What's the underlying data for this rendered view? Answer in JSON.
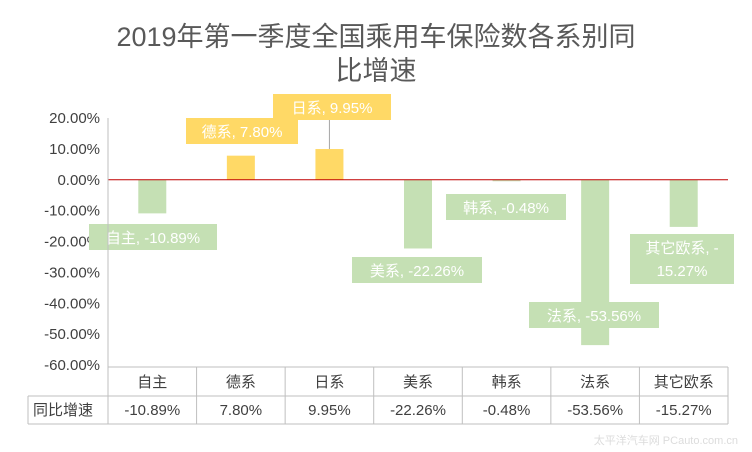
{
  "chart_data": {
    "type": "bar",
    "title": "2019年第一季度全国乘用车保险数各系别同比增速",
    "title_lines": [
      "2019年第一季度全国乘用车保险数各系别同",
      "比增速"
    ],
    "categories": [
      "自主",
      "德系",
      "日系",
      "美系",
      "韩系",
      "法系",
      "其它欧系"
    ],
    "series": [
      {
        "name": "同比增速",
        "values": [
          -10.89,
          7.8,
          9.95,
          -22.26,
          -0.48,
          -53.56,
          -15.27
        ]
      }
    ],
    "value_labels": [
      "-10.89%",
      "7.80%",
      "9.95%",
      "-22.26%",
      "-0.48%",
      "-53.56%",
      "-15.27%"
    ],
    "data_labels": [
      [
        "自主, -10.89%"
      ],
      [
        "德系, 7.80%"
      ],
      [
        "日系, 9.95%"
      ],
      [
        "美系, -22.26%"
      ],
      [
        "韩系, -0.48%"
      ],
      [
        "法系, -53.56%"
      ],
      [
        "其它欧系, -",
        "15.27%"
      ]
    ],
    "ylim": [
      -60,
      20
    ],
    "yticks": [
      20,
      10,
      0,
      -10,
      -20,
      -30,
      -40,
      -50,
      -60
    ],
    "ytick_labels": [
      "20.00%",
      "10.00%",
      "0.00%",
      "-10.00%",
      "-20.00%",
      "-30.00%",
      "-40.00%",
      "-50.00%",
      "-60.00%"
    ],
    "data_table": true,
    "grid": false,
    "colors": {
      "positive": "#ffd966",
      "negative": "#c5e0b4",
      "zero_line": "#c00000",
      "table_border": "#bfbfbf",
      "title": "#595959",
      "text": "#404040"
    }
  },
  "watermark": "太平洋汽车网 PCauto.com.cn"
}
